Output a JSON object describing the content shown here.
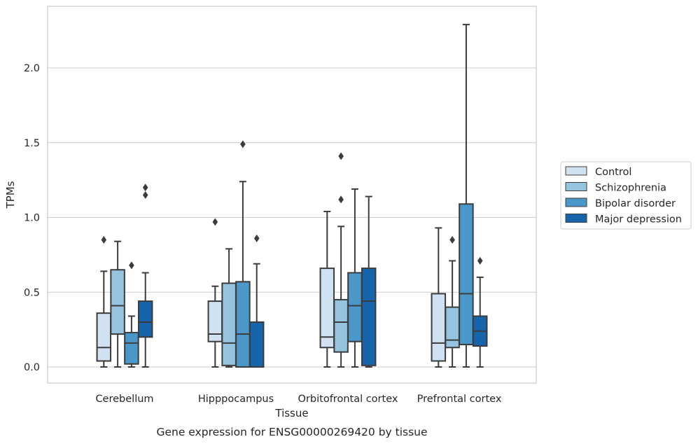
{
  "chart_data": {
    "type": "box",
    "xlabel": "Tissue",
    "ylabel": "TPMs",
    "caption": "Gene expression for ENSG00000269420 by tissue",
    "ylim": [
      -0.11,
      2.42
    ],
    "yticks": [
      0.0,
      0.5,
      1.0,
      1.5,
      2.0
    ],
    "ytick_labels": [
      "0.0",
      "0.5",
      "1.0",
      "1.5",
      "2.0"
    ],
    "grid": "horizontal",
    "legend_position": "right",
    "categories": [
      "Cerebellum",
      "Hipppocampus",
      "Orbitofrontal cortex",
      "Prefrontal cortex"
    ],
    "series": [
      {
        "name": "Control",
        "color": "#d0e1f2",
        "boxes": [
          {
            "whisker_low": 0.0,
            "q1": 0.04,
            "median": 0.13,
            "q3": 0.36,
            "whisker_high": 0.64,
            "outliers": [
              0.85
            ]
          },
          {
            "whisker_low": 0.0,
            "q1": 0.17,
            "median": 0.22,
            "q3": 0.44,
            "whisker_high": 0.54,
            "outliers": [
              0.97
            ]
          },
          {
            "whisker_low": 0.0,
            "q1": 0.13,
            "median": 0.2,
            "q3": 0.66,
            "whisker_high": 1.04,
            "outliers": []
          },
          {
            "whisker_low": 0.0,
            "q1": 0.04,
            "median": 0.16,
            "q3": 0.49,
            "whisker_high": 0.93,
            "outliers": []
          }
        ]
      },
      {
        "name": "Schizophrenia",
        "color": "#94c4df",
        "boxes": [
          {
            "whisker_low": 0.0,
            "q1": 0.22,
            "median": 0.41,
            "q3": 0.65,
            "whisker_high": 0.84,
            "outliers": []
          },
          {
            "whisker_low": 0.0,
            "q1": 0.01,
            "median": 0.16,
            "q3": 0.56,
            "whisker_high": 0.79,
            "outliers": []
          },
          {
            "whisker_low": 0.0,
            "q1": 0.1,
            "median": 0.3,
            "q3": 0.45,
            "whisker_high": 0.94,
            "outliers": [
              1.12,
              1.41
            ]
          },
          {
            "whisker_low": 0.0,
            "q1": 0.13,
            "median": 0.18,
            "q3": 0.4,
            "whisker_high": 0.71,
            "outliers": [
              0.85
            ]
          }
        ]
      },
      {
        "name": "Bipolar disorder",
        "color": "#4a98c9",
        "boxes": [
          {
            "whisker_low": 0.0,
            "q1": 0.02,
            "median": 0.16,
            "q3": 0.23,
            "whisker_high": 0.34,
            "outliers": [
              0.68
            ]
          },
          {
            "whisker_low": 0.0,
            "q1": 0.0,
            "median": 0.22,
            "q3": 0.57,
            "whisker_high": 1.24,
            "outliers": [
              1.49
            ]
          },
          {
            "whisker_low": 0.0,
            "q1": 0.17,
            "median": 0.41,
            "q3": 0.63,
            "whisker_high": 1.19,
            "outliers": []
          },
          {
            "whisker_low": 0.0,
            "q1": 0.15,
            "median": 0.49,
            "q3": 1.09,
            "whisker_high": 2.29,
            "outliers": []
          }
        ]
      },
      {
        "name": "Major depression",
        "color": "#1764ab",
        "boxes": [
          {
            "whisker_low": 0.0,
            "q1": 0.2,
            "median": 0.3,
            "q3": 0.44,
            "whisker_high": 0.63,
            "outliers": [
              1.15,
              1.2
            ]
          },
          {
            "whisker_low": 0.0,
            "q1": 0.0,
            "median": 0.0,
            "q3": 0.3,
            "whisker_high": 0.69,
            "outliers": [
              0.86
            ]
          },
          {
            "whisker_low": 0.0,
            "q1": 0.01,
            "median": 0.44,
            "q3": 0.66,
            "whisker_high": 1.14,
            "outliers": []
          },
          {
            "whisker_low": 0.0,
            "q1": 0.14,
            "median": 0.24,
            "q3": 0.34,
            "whisker_high": 0.6,
            "outliers": [
              0.71
            ]
          }
        ]
      }
    ]
  }
}
